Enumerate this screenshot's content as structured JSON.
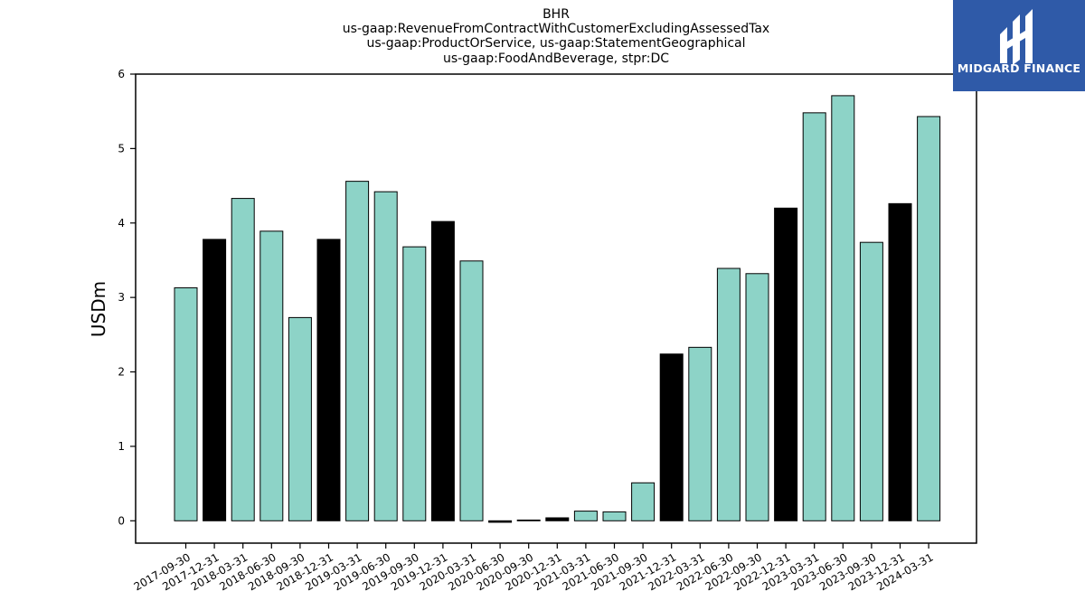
{
  "logo": {
    "text": "MIDGARD FINANCE",
    "icon": "midgard-logo-icon",
    "background": "#2f5aa8"
  },
  "chart_data": {
    "type": "bar",
    "title_lines": [
      "BHR",
      "us-gaap:RevenueFromContractWithCustomerExcludingAssessedTax",
      "us-gaap:ProductOrService, us-gaap:StatementGeographical",
      "us-gaap:FoodAndBeverage, stpr:DC"
    ],
    "ylabel": "USDm",
    "xlabel": "",
    "ylim": [
      -0.3,
      6.0
    ],
    "yticks": [
      0,
      1,
      2,
      3,
      4,
      5,
      6
    ],
    "categories": [
      "2017-09-30",
      "2017-12-31",
      "2018-03-31",
      "2018-06-30",
      "2018-09-30",
      "2018-12-31",
      "2019-03-31",
      "2019-06-30",
      "2019-09-30",
      "2019-12-31",
      "2020-03-31",
      "2020-06-30",
      "2020-09-30",
      "2020-12-31",
      "2021-03-31",
      "2021-06-30",
      "2021-09-30",
      "2021-12-31",
      "2022-03-31",
      "2022-06-30",
      "2022-09-30",
      "2022-12-31",
      "2023-03-31",
      "2023-06-30",
      "2023-09-30",
      "2023-12-31",
      "2024-03-31"
    ],
    "values": [
      3.13,
      3.78,
      4.33,
      3.89,
      2.73,
      3.78,
      4.56,
      4.42,
      3.68,
      4.02,
      3.49,
      -0.02,
      0.01,
      0.04,
      0.13,
      0.12,
      0.51,
      2.24,
      2.33,
      3.39,
      3.32,
      4.2,
      5.48,
      5.71,
      3.74,
      4.26,
      5.43
    ],
    "bar_colors": [
      "#8dd3c7",
      "#000000",
      "#8dd3c7",
      "#8dd3c7",
      "#8dd3c7",
      "#000000",
      "#8dd3c7",
      "#8dd3c7",
      "#8dd3c7",
      "#000000",
      "#8dd3c7",
      "#000000",
      "#8dd3c7",
      "#000000",
      "#8dd3c7",
      "#8dd3c7",
      "#8dd3c7",
      "#000000",
      "#8dd3c7",
      "#8dd3c7",
      "#8dd3c7",
      "#000000",
      "#8dd3c7",
      "#8dd3c7",
      "#8dd3c7",
      "#000000",
      "#8dd3c7"
    ],
    "grid": false,
    "legend": "none"
  }
}
